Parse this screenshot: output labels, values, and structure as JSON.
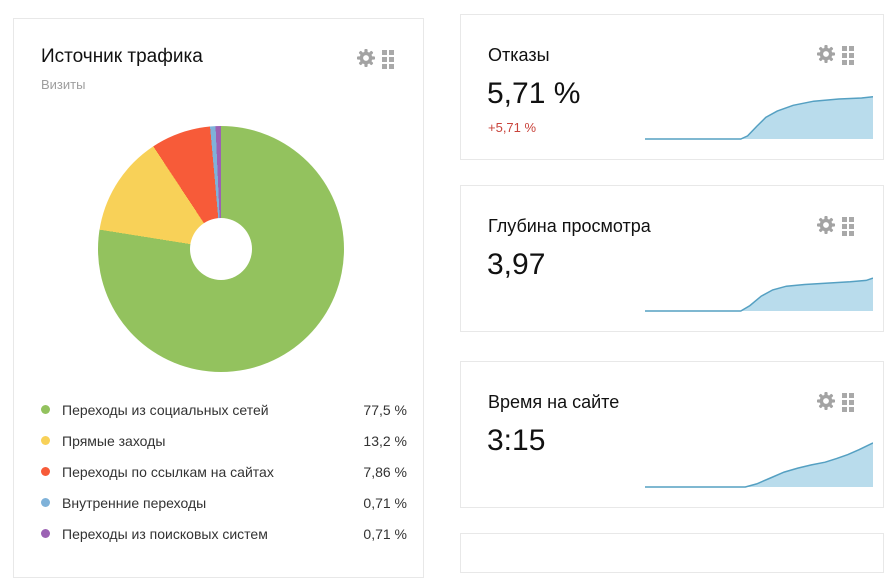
{
  "traffic_card": {
    "title": "Источник трафика",
    "subtitle": "Визиты",
    "legend": [
      {
        "label": "Переходы из социальных сетей",
        "value": "77,5 %"
      },
      {
        "label": "Прямые заходы",
        "value": "13,2 %"
      },
      {
        "label": "Переходы по ссылкам на сайтах",
        "value": "7,86 %"
      },
      {
        "label": "Внутренние переходы",
        "value": "0,71 %"
      },
      {
        "label": "Переходы из поисковых систем",
        "value": "0,71 %"
      }
    ]
  },
  "metric_cards": [
    {
      "title": "Отказы",
      "value": "5,71 %",
      "delta": "+5,71 %"
    },
    {
      "title": "Глубина просмотра",
      "value": "3,97",
      "delta": ""
    },
    {
      "title": "Время на сайте",
      "value": "3:15",
      "delta": ""
    }
  ],
  "icons": {
    "settings": "gear-icon",
    "drag_handle": "grid-dots-icon"
  },
  "colors": {
    "pie": [
      "#93c25e",
      "#f8d158",
      "#f75b39",
      "#7fb2d9",
      "#9c62b4"
    ],
    "spark_stroke": "#55a0c2",
    "spark_fill": "#b9dcec",
    "delta_red": "#c9443c",
    "icon_gray": "#a3a3a3",
    "card_border": "#e8e8e8"
  },
  "chart_data": [
    {
      "type": "pie",
      "donut": true,
      "title": "Источник трафика",
      "metric": "Визиты",
      "labels": [
        "Переходы из социальных сетей",
        "Прямые заходы",
        "Переходы по ссылкам на сайтах",
        "Внутренние переходы",
        "Переходы из поисковых систем"
      ],
      "values": [
        77.5,
        13.2,
        7.86,
        0.71,
        0.71
      ],
      "unit": "%",
      "legend_position": "bottom"
    },
    {
      "type": "area",
      "title": "Отказы",
      "value": "5,71 %",
      "delta": "+5,71 %",
      "points": [
        [
          0,
          0
        ],
        [
          0.42,
          0
        ],
        [
          0.45,
          0.07
        ],
        [
          0.49,
          0.28
        ],
        [
          0.53,
          0.48
        ],
        [
          0.58,
          0.62
        ],
        [
          0.65,
          0.75
        ],
        [
          0.74,
          0.84
        ],
        [
          0.85,
          0.89
        ],
        [
          0.95,
          0.91
        ],
        [
          1,
          0.94
        ]
      ]
    },
    {
      "type": "area",
      "title": "Глубина просмотра",
      "value": "3,97",
      "points": [
        [
          0,
          0
        ],
        [
          0.42,
          0
        ],
        [
          0.46,
          0.12
        ],
        [
          0.51,
          0.33
        ],
        [
          0.56,
          0.47
        ],
        [
          0.62,
          0.55
        ],
        [
          0.7,
          0.59
        ],
        [
          0.8,
          0.62
        ],
        [
          0.9,
          0.65
        ],
        [
          0.97,
          0.68
        ],
        [
          1,
          0.73
        ]
      ]
    },
    {
      "type": "area",
      "title": "Время на сайте",
      "value": "3:15",
      "points": [
        [
          0,
          0
        ],
        [
          0.44,
          0
        ],
        [
          0.49,
          0.07
        ],
        [
          0.55,
          0.2
        ],
        [
          0.61,
          0.33
        ],
        [
          0.67,
          0.42
        ],
        [
          0.73,
          0.49
        ],
        [
          0.79,
          0.55
        ],
        [
          0.84,
          0.63
        ],
        [
          0.89,
          0.72
        ],
        [
          0.94,
          0.83
        ],
        [
          1,
          0.98
        ]
      ]
    }
  ]
}
